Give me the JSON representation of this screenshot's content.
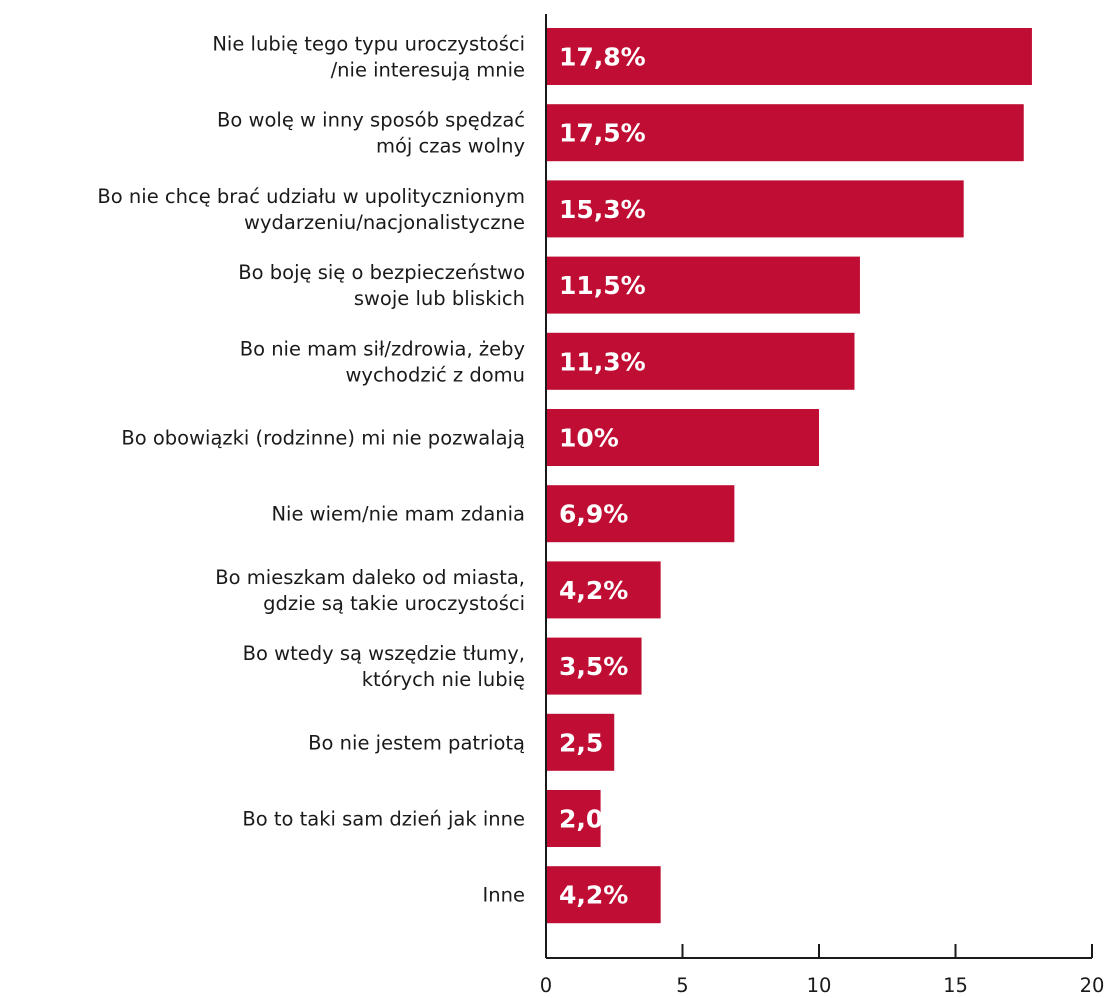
{
  "chart_data": {
    "type": "bar",
    "orientation": "horizontal",
    "categories": [
      [
        "Nie lubię tego typu uroczystości",
        "/nie interesują mnie"
      ],
      [
        "Bo wolę w inny sposób spędzać",
        "mój czas wolny"
      ],
      [
        "Bo nie chcę brać udziału w upolitycznionym",
        "wydarzeniu/nacjonalistyczne"
      ],
      [
        "Bo boję się o bezpieczeństwo",
        "swoje lub bliskich"
      ],
      [
        "Bo nie mam sił/zdrowia, żeby",
        "wychodzić z domu"
      ],
      [
        "Bo obowiązki (rodzinne) mi nie pozwalają"
      ],
      [
        "Nie wiem/nie mam zdania"
      ],
      [
        "Bo mieszkam daleko od miasta,",
        "gdzie są takie uroczystości"
      ],
      [
        "Bo wtedy są wszędzie tłumy,",
        "których nie lubię"
      ],
      [
        "Bo nie jestem patriotą"
      ],
      [
        "Bo to taki sam dzień jak inne"
      ],
      [
        "Inne"
      ]
    ],
    "values": [
      17.8,
      17.5,
      15.3,
      11.5,
      11.3,
      10,
      6.9,
      4.2,
      3.5,
      2.5,
      2.0,
      4.2
    ],
    "data_labels": [
      "17,8%",
      "17,5%",
      "15,3%",
      "11,5%",
      "11,3%",
      "10%",
      "6,9%",
      "4,2%",
      "3,5%",
      "2,5",
      "2,0",
      "4,2%"
    ],
    "xlim": [
      0,
      20
    ],
    "xticks": [
      0,
      5,
      10,
      15,
      20
    ],
    "xtick_labels": [
      "0",
      "5",
      "10",
      "15",
      "20"
    ],
    "bar_color": "#c00d33",
    "label_color": "#ffffff",
    "grid": false,
    "legend": false
  }
}
